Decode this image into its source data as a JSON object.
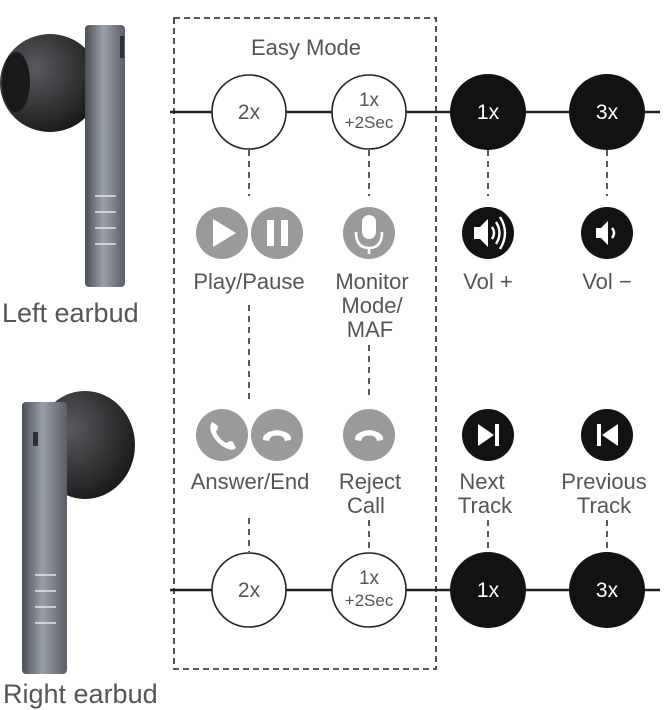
{
  "mode_title": "Easy Mode",
  "left": {
    "label": "Left earbud",
    "taps": {
      "double": "2x",
      "hold_line1": "1x",
      "hold_line2": "+2Sec",
      "single": "1x",
      "triple": "3x"
    },
    "functions": {
      "play_pause": "Play/Pause",
      "monitor_line1": "Monitor",
      "monitor_line2": "Mode/",
      "monitor_line3": "MAF",
      "vol_up": "Vol +",
      "vol_down": "Vol −"
    }
  },
  "right": {
    "label": "Right earbud",
    "taps": {
      "double": "2x",
      "hold_line1": "1x",
      "hold_line2": "+2Sec",
      "single": "1x",
      "triple": "3x"
    },
    "functions": {
      "answer_end": "Answer/End",
      "reject_line1": "Reject",
      "reject_line2": "Call",
      "next_line1": "Next",
      "next_line2": "Track",
      "prev_line1": "Previous",
      "prev_line2": "Track"
    }
  },
  "colors": {
    "dark": "#121212",
    "grey_icon": "#9a9a9a",
    "text": "#555555",
    "line": "#222222"
  },
  "icons": {
    "play": "play-icon",
    "pause": "pause-icon",
    "mic": "microphone-icon",
    "vol_up": "volume-up-icon",
    "vol_down": "volume-down-icon",
    "phone": "phone-icon",
    "hangup": "hang-up-icon",
    "next": "next-track-icon",
    "prev": "previous-track-icon"
  }
}
